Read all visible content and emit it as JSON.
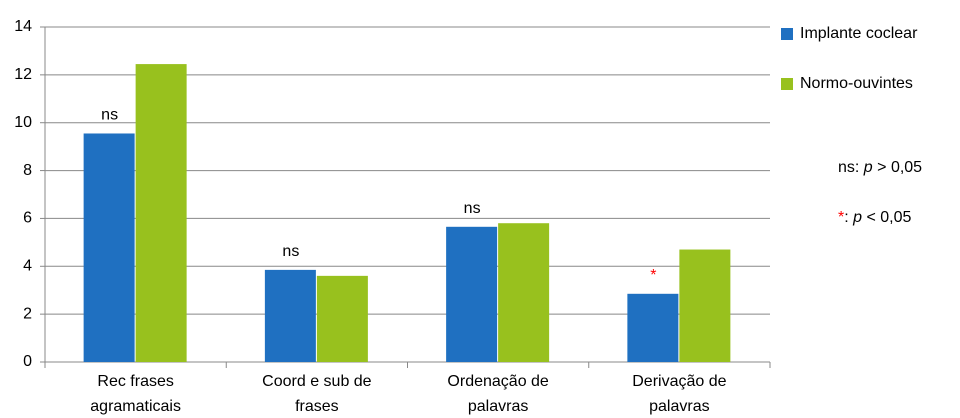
{
  "chart_data": {
    "type": "bar",
    "categories": [
      [
        "Rec frases",
        "agramaticais"
      ],
      [
        "Coord e sub de",
        "frases"
      ],
      [
        "Ordenação de",
        "palavras"
      ],
      [
        "Derivação de",
        "palavras"
      ]
    ],
    "series": [
      {
        "name": "Implante coclear",
        "color": "#1f70c1",
        "values": [
          9.55,
          3.85,
          5.65,
          2.85
        ]
      },
      {
        "name": "Normo-ouvintes",
        "color": "#98c11e",
        "values": [
          12.45,
          3.6,
          5.8,
          4.7
        ]
      }
    ],
    "annotations": [
      {
        "text": "ns",
        "color": "#000000"
      },
      {
        "text": "ns",
        "color": "#000000"
      },
      {
        "text": "ns",
        "color": "#000000"
      },
      {
        "text": "*",
        "color": "#ff0000"
      }
    ],
    "notes": [
      [
        {
          "text": "ns: "
        },
        {
          "text": "p",
          "italic": true
        },
        {
          "text": " > 0,05"
        }
      ],
      [
        {
          "text": "*",
          "color": "#ff0000"
        },
        {
          "text": ": "
        },
        {
          "text": "p",
          "italic": true
        },
        {
          "text": " < 0,05"
        }
      ]
    ],
    "ylim": [
      0,
      14
    ],
    "yticks": [
      0,
      2,
      4,
      6,
      8,
      10,
      12,
      14
    ],
    "grid": true
  }
}
